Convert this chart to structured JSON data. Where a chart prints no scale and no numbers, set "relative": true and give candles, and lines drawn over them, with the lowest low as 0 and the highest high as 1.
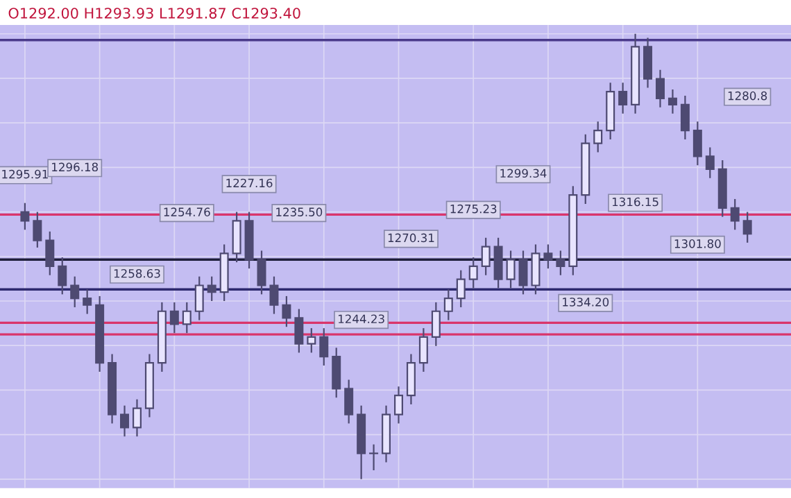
{
  "chart_data": {
    "type": "candlestick",
    "title": "O1292.00 H1293.93 L1291.87 C1293.40",
    "relative": true,
    "categories": [
      null,
      null,
      null,
      null,
      null,
      null,
      null,
      null,
      null,
      null,
      null,
      null,
      null,
      null,
      null,
      null,
      null,
      null,
      null,
      null,
      null,
      null,
      null,
      null,
      null,
      null,
      null,
      null,
      null,
      null,
      null,
      null,
      null,
      null,
      null,
      null,
      null,
      null,
      null,
      null,
      null,
      null,
      null,
      null,
      null,
      null,
      null,
      null,
      null,
      null,
      null,
      null,
      null,
      null,
      null,
      null,
      null,
      null,
      null
    ],
    "ohlc": [
      [
        0.6,
        0.62,
        0.56,
        0.58
      ],
      [
        0.58,
        0.6,
        0.52,
        0.536
      ],
      [
        0.536,
        0.556,
        0.458,
        0.478
      ],
      [
        0.478,
        0.498,
        0.415,
        0.435
      ],
      [
        0.435,
        0.455,
        0.386,
        0.406
      ],
      [
        0.406,
        0.426,
        0.371,
        0.391
      ],
      [
        0.391,
        0.411,
        0.241,
        0.261
      ],
      [
        0.261,
        0.281,
        0.125,
        0.145
      ],
      [
        0.145,
        0.165,
        0.096,
        0.116
      ],
      [
        0.116,
        0.179,
        0.096,
        0.159
      ],
      [
        0.159,
        0.281,
        0.139,
        0.261
      ],
      [
        0.261,
        0.397,
        0.241,
        0.377
      ],
      [
        0.377,
        0.397,
        0.328,
        0.348
      ],
      [
        0.348,
        0.397,
        0.328,
        0.377
      ],
      [
        0.377,
        0.455,
        0.357,
        0.435
      ],
      [
        0.435,
        0.455,
        0.4,
        0.42
      ],
      [
        0.42,
        0.527,
        0.4,
        0.507
      ],
      [
        0.507,
        0.6,
        0.487,
        0.58
      ],
      [
        0.58,
        0.6,
        0.473,
        0.493
      ],
      [
        0.493,
        0.513,
        0.415,
        0.435
      ],
      [
        0.435,
        0.455,
        0.371,
        0.391
      ],
      [
        0.391,
        0.411,
        0.342,
        0.362
      ],
      [
        0.362,
        0.382,
        0.284,
        0.304
      ],
      [
        0.304,
        0.339,
        0.284,
        0.319
      ],
      [
        0.319,
        0.339,
        0.255,
        0.275
      ],
      [
        0.275,
        0.295,
        0.183,
        0.203
      ],
      [
        0.203,
        0.223,
        0.125,
        0.145
      ],
      [
        0.145,
        0.165,
        0.0,
        0.058
      ],
      [
        0.058,
        0.078,
        0.02,
        0.058
      ],
      [
        0.058,
        0.165,
        0.038,
        0.145
      ],
      [
        0.145,
        0.208,
        0.125,
        0.188
      ],
      [
        0.188,
        0.281,
        0.168,
        0.261
      ],
      [
        0.261,
        0.339,
        0.241,
        0.319
      ],
      [
        0.319,
        0.397,
        0.299,
        0.377
      ],
      [
        0.377,
        0.426,
        0.357,
        0.406
      ],
      [
        0.406,
        0.469,
        0.386,
        0.449
      ],
      [
        0.449,
        0.498,
        0.429,
        0.478
      ],
      [
        0.478,
        0.542,
        0.458,
        0.522
      ],
      [
        0.522,
        0.542,
        0.429,
        0.449
      ],
      [
        0.449,
        0.513,
        0.429,
        0.493
      ],
      [
        0.493,
        0.513,
        0.415,
        0.435
      ],
      [
        0.435,
        0.527,
        0.415,
        0.507
      ],
      [
        0.507,
        0.527,
        0.473,
        0.493
      ],
      [
        0.493,
        0.513,
        0.458,
        0.478
      ],
      [
        0.478,
        0.658,
        0.458,
        0.638
      ],
      [
        0.638,
        0.774,
        0.618,
        0.754
      ],
      [
        0.754,
        0.803,
        0.734,
        0.783
      ],
      [
        0.783,
        0.89,
        0.763,
        0.87
      ],
      [
        0.87,
        0.89,
        0.821,
        0.841
      ],
      [
        0.841,
        1.0,
        0.821,
        0.971
      ],
      [
        0.971,
        0.991,
        0.879,
        0.899
      ],
      [
        0.899,
        0.919,
        0.835,
        0.855
      ],
      [
        0.855,
        0.875,
        0.821,
        0.841
      ],
      [
        0.841,
        0.861,
        0.763,
        0.783
      ],
      [
        0.783,
        0.803,
        0.705,
        0.725
      ],
      [
        0.725,
        0.745,
        0.676,
        0.696
      ],
      [
        0.696,
        0.716,
        0.589,
        0.609
      ],
      [
        0.609,
        0.629,
        0.56,
        0.58
      ],
      [
        0.58,
        0.6,
        0.531,
        0.551
      ]
    ],
    "color": "#4e4a72",
    "grid": true,
    "ref_lines": [
      {
        "axis": "y",
        "value": 0.594,
        "color": "#d9356b"
      },
      {
        "axis": "y",
        "value": 0.426,
        "color": "#2e2a6e"
      },
      {
        "axis": "y",
        "value": 0.493,
        "color": "#1e1e3a"
      },
      {
        "axis": "y",
        "value": 0.351,
        "color": "#d9356b"
      },
      {
        "axis": "y",
        "value": 0.325,
        "color": "#d9356b"
      },
      {
        "axis": "y",
        "value": 0.986,
        "color": "#4a3a8a"
      }
    ],
    "annotations": [
      "1295.91",
      "1296.18",
      "1258.63",
      "1254.76",
      "1227.16",
      "1235.50",
      "1244.23",
      "1270.31",
      "1275.23",
      "1299.34",
      "1334.20",
      "1316.15",
      "1301.80",
      "1280.8"
    ]
  }
}
